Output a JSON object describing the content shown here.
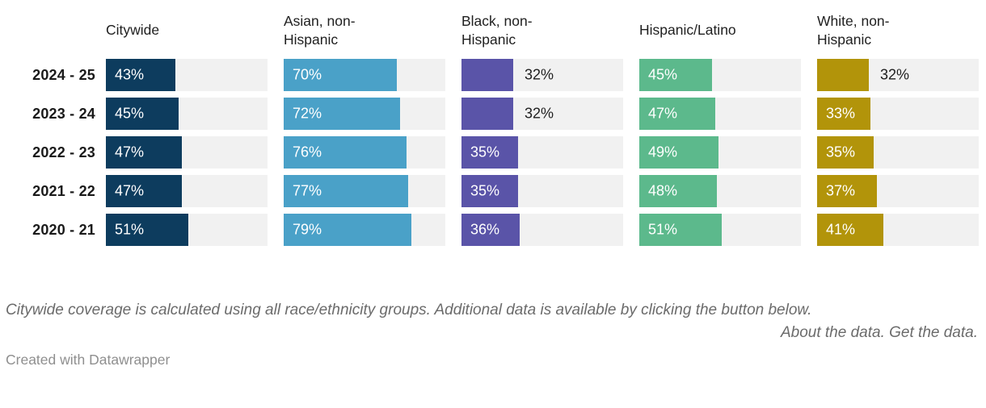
{
  "chart_data": {
    "type": "bar",
    "orientation": "horizontal",
    "title": "",
    "categories": [
      "2024 - 25",
      "2023 - 24",
      "2022 - 23",
      "2021 - 22",
      "2020 - 21"
    ],
    "series": [
      {
        "name": "Citywide",
        "header_label": "Citywide",
        "color": "#0d3c5e",
        "values": [
          43,
          45,
          47,
          47,
          51
        ]
      },
      {
        "name": "Asian, non-Hispanic",
        "header_label": "Asian, non-\nHispanic",
        "color": "#4aa1c8",
        "values": [
          70,
          72,
          76,
          77,
          79
        ]
      },
      {
        "name": "Black, non-Hispanic",
        "header_label": "Black, non-\nHispanic",
        "color": "#5a54a8",
        "values": [
          32,
          32,
          35,
          35,
          36
        ]
      },
      {
        "name": "Hispanic/Latino",
        "header_label": "Hispanic/Latino",
        "color": "#5cb98c",
        "values": [
          45,
          47,
          49,
          48,
          51
        ]
      },
      {
        "name": "White, non-Hispanic",
        "header_label": "White, non-\nHispanic",
        "color": "#b2940a",
        "values": [
          32,
          33,
          35,
          37,
          41
        ]
      }
    ],
    "value_suffix": "%",
    "xlim": [
      0,
      100
    ],
    "track_color": "#f1f1f1",
    "grid": false,
    "legend_position": "column-headers"
  },
  "footer": {
    "note": "Citywide coverage is calculated using all race/ethnicity groups. Additional data is available by clicking the button below.",
    "about_link": "About the data.",
    "get_link": "Get the data.",
    "attribution": "Created with Datawrapper"
  }
}
